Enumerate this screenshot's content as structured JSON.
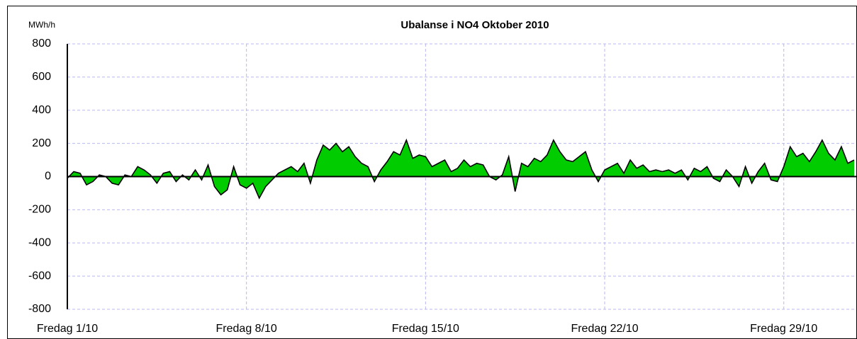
{
  "chart_data": {
    "type": "area",
    "title": "Ubalanse i NO4 Oktober 2010",
    "y_label": "MWh/h",
    "x": [
      0,
      6,
      12,
      18,
      24,
      30,
      36,
      42,
      48,
      54,
      60,
      66,
      72,
      78,
      84,
      90,
      96,
      102,
      108,
      114,
      120,
      126,
      132,
      138,
      144,
      150,
      156,
      162,
      168,
      174,
      180,
      186,
      192,
      198,
      204,
      210,
      216,
      222,
      228,
      234,
      240,
      246,
      252,
      258,
      264,
      270,
      276,
      282,
      288,
      294,
      300,
      306,
      312,
      318,
      324,
      330,
      336,
      342,
      348,
      354,
      360,
      366,
      372,
      378,
      384,
      390,
      396,
      402,
      408,
      414,
      420,
      426,
      432,
      438,
      444,
      450,
      456,
      462,
      468,
      474,
      480,
      486,
      492,
      498,
      504,
      510,
      516,
      522,
      528,
      534,
      540,
      546,
      552,
      558,
      564,
      570,
      576,
      582,
      588,
      594,
      600,
      606,
      612,
      618,
      624,
      630,
      636,
      642,
      648,
      654,
      660,
      666,
      672,
      678,
      684,
      690,
      696,
      702,
      708,
      714,
      720,
      726,
      732,
      738
    ],
    "series": [
      {
        "name": "Ubalanse",
        "color": "#00cc00",
        "values": [
          -10,
          30,
          20,
          -50,
          -30,
          10,
          0,
          -40,
          -50,
          10,
          0,
          60,
          40,
          10,
          -40,
          20,
          30,
          -30,
          10,
          -20,
          40,
          -20,
          70,
          -60,
          -110,
          -80,
          60,
          -50,
          -70,
          -40,
          -130,
          -60,
          -20,
          20,
          40,
          60,
          30,
          80,
          -40,
          100,
          190,
          160,
          200,
          150,
          180,
          120,
          80,
          60,
          -30,
          40,
          90,
          150,
          130,
          220,
          110,
          130,
          120,
          60,
          80,
          100,
          30,
          50,
          100,
          60,
          80,
          70,
          0,
          -20,
          10,
          120,
          -90,
          80,
          60,
          110,
          90,
          130,
          220,
          150,
          100,
          90,
          120,
          150,
          40,
          -30,
          40,
          60,
          80,
          20,
          100,
          50,
          70,
          30,
          40,
          30,
          40,
          20,
          40,
          -20,
          50,
          30,
          60,
          -10,
          -30,
          40,
          0,
          -60,
          60,
          -40,
          30,
          80,
          -20,
          -30,
          60,
          180,
          120,
          140,
          90,
          150,
          220,
          140,
          100,
          180,
          80,
          100
        ]
      }
    ],
    "xlim": [
      0,
      740
    ],
    "xticks": [
      {
        "value": 0,
        "label": "Fredag 1/10"
      },
      {
        "value": 168,
        "label": "Fredag 8/10"
      },
      {
        "value": 336,
        "label": "Fredag 15/10"
      },
      {
        "value": 504,
        "label": "Fredag 22/10"
      },
      {
        "value": 672,
        "label": "Fredag 29/10"
      }
    ],
    "ylim": [
      -800,
      800
    ],
    "yticks": [
      -800,
      -600,
      -400,
      -200,
      0,
      200,
      400,
      600,
      800
    ],
    "grid": true
  }
}
